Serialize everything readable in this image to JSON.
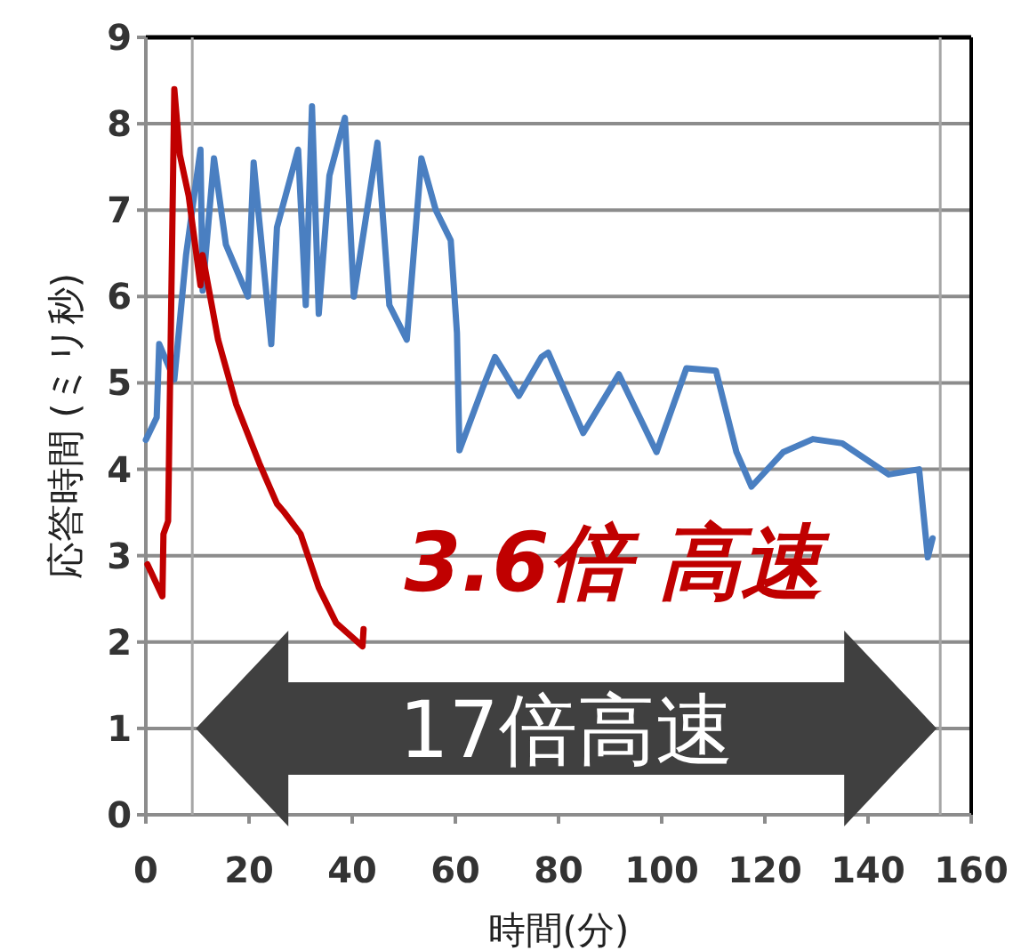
{
  "chart_data": {
    "type": "line",
    "xlabel": "時間(分)",
    "ylabel": "応答時間 (ミリ秒)",
    "xlim": [
      0,
      160
    ],
    "xticks": [
      0,
      20,
      40,
      60,
      80,
      100,
      120,
      140,
      160
    ],
    "ylim": [
      0,
      9
    ],
    "yticks": [
      0,
      1,
      2,
      3,
      4,
      5,
      6,
      7,
      8,
      9
    ],
    "grid": "y",
    "line_style": "solid",
    "marker": "none",
    "series": [
      {
        "color": "#4a7fc1",
        "x": [
          0,
          2.1,
          2.6,
          5.5,
          7.8,
          10.6,
          11,
          13.2,
          15.5,
          19.8,
          20.9,
          24.3,
          25.4,
          29.5,
          31,
          32.2,
          33.5,
          35.6,
          38.6,
          40.3,
          44.9,
          47.2,
          50.6,
          53.4,
          56.2,
          59.1,
          60.3,
          60.8,
          65.4,
          67.7,
          72.3,
          76.7,
          78,
          84.8,
          91.7,
          99,
          104.8,
          110.5,
          114.5,
          117.4,
          123.6,
          129.3,
          135,
          144,
          149.9,
          151.6,
          152.5
        ],
        "values": [
          4.34,
          4.6,
          5.45,
          5.04,
          6.48,
          7.7,
          6.07,
          7.6,
          6.6,
          6.0,
          7.55,
          5.45,
          6.8,
          7.7,
          5.9,
          8.2,
          5.8,
          7.4,
          8.07,
          6.0,
          7.78,
          5.9,
          5.5,
          7.6,
          7.0,
          6.65,
          5.58,
          4.22,
          4.96,
          5.3,
          4.85,
          5.3,
          5.35,
          4.42,
          5.1,
          4.2,
          5.17,
          5.14,
          4.2,
          3.8,
          4.2,
          4.35,
          4.3,
          3.94,
          4.0,
          2.98,
          3.2
        ]
      },
      {
        "color": "#c00000",
        "x": [
          0.3,
          3.2,
          3.4,
          4.3,
          5.5,
          6.6,
          8.3,
          10.6,
          11,
          14,
          17.5,
          22,
          25.4,
          26.6,
          30,
          33.5,
          36.9,
          42,
          42.2
        ],
        "values": [
          2.9,
          2.53,
          3.25,
          3.4,
          8.4,
          7.64,
          7.16,
          6.13,
          6.48,
          5.5,
          4.75,
          4.07,
          3.6,
          3.52,
          3.25,
          2.63,
          2.22,
          1.95,
          2.15
        ]
      }
    ],
    "ref_lines": [
      {
        "axis": "x",
        "value": 9,
        "color": "#a6a6a6"
      },
      {
        "axis": "x",
        "value": 154,
        "color": "#a6a6a6"
      }
    ],
    "annotations": [
      "3.6倍 高速",
      "17倍高速"
    ]
  }
}
